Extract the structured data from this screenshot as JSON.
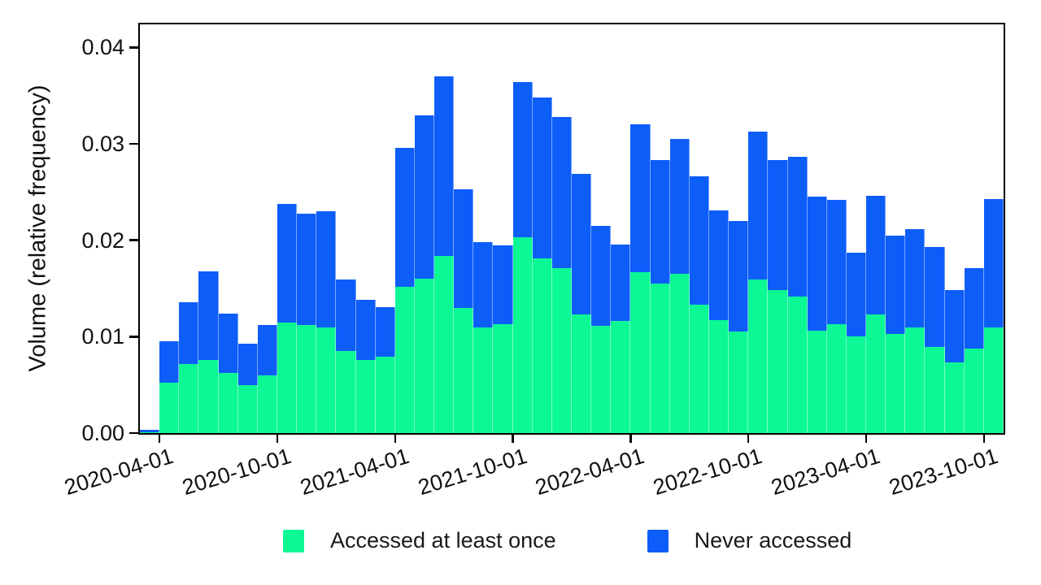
{
  "chart_data": {
    "type": "bar",
    "stacked": true,
    "title": "",
    "xlabel": "",
    "ylabel": "Volume (relative frequency)",
    "grid": false,
    "background": "#ffffff",
    "ylim": [
      0,
      0.0424
    ],
    "ytick_values": [
      0,
      0.01,
      0.02,
      0.03,
      0.04
    ],
    "ytick_labels": [
      "0.00",
      "0.01",
      "0.02",
      "0.03",
      "0.04"
    ],
    "categories": [
      "2020-03",
      "2020-04",
      "2020-05",
      "2020-06",
      "2020-07",
      "2020-08",
      "2020-09",
      "2020-10",
      "2020-11",
      "2020-12",
      "2021-01",
      "2021-02",
      "2021-03",
      "2021-04",
      "2021-05",
      "2021-06",
      "2021-07",
      "2021-08",
      "2021-09",
      "2021-10",
      "2021-11",
      "2021-12",
      "2022-01",
      "2022-02",
      "2022-03",
      "2022-04",
      "2022-05",
      "2022-06",
      "2022-07",
      "2022-08",
      "2022-09",
      "2022-10",
      "2022-11",
      "2022-12",
      "2023-01",
      "2023-02",
      "2023-03",
      "2023-04",
      "2023-05",
      "2023-06",
      "2023-07",
      "2023-08",
      "2023-09",
      "2023-10"
    ],
    "xtick_bar_indices": [
      1,
      7,
      13,
      19,
      25,
      31,
      37,
      43
    ],
    "xtick_labels": [
      "2020-04-01",
      "2020-10-01",
      "2021-04-01",
      "2021-10-01",
      "2022-04-01",
      "2022-10-01",
      "2023-04-01",
      "2023-10-01"
    ],
    "series": [
      {
        "name": "Accessed at least once",
        "color": "#0BF894",
        "values": [
          0.0001,
          0.0052,
          0.0072,
          0.0076,
          0.0062,
          0.005,
          0.006,
          0.0115,
          0.0112,
          0.011,
          0.0085,
          0.0076,
          0.0079,
          0.0152,
          0.016,
          0.0184,
          0.013,
          0.011,
          0.0113,
          0.0203,
          0.0181,
          0.0171,
          0.0123,
          0.0111,
          0.0116,
          0.0167,
          0.0155,
          0.0165,
          0.0133,
          0.0117,
          0.0105,
          0.0159,
          0.0148,
          0.0142,
          0.0106,
          0.0113,
          0.01,
          0.0123,
          0.0103,
          0.011,
          0.0089,
          0.0073,
          0.0088,
          0.011
        ]
      },
      {
        "name": "Never accessed",
        "color": "#0D5DF9",
        "values": [
          0.0002,
          0.0043,
          0.0064,
          0.0092,
          0.0062,
          0.0043,
          0.0052,
          0.0123,
          0.0116,
          0.012,
          0.0074,
          0.0062,
          0.0052,
          0.0144,
          0.017,
          0.0186,
          0.0123,
          0.0088,
          0.0082,
          0.0161,
          0.0167,
          0.0157,
          0.0146,
          0.0104,
          0.008,
          0.0153,
          0.0128,
          0.014,
          0.0133,
          0.0114,
          0.0115,
          0.0154,
          0.0135,
          0.0145,
          0.0139,
          0.0129,
          0.0087,
          0.0123,
          0.0102,
          0.0102,
          0.0104,
          0.0075,
          0.0083,
          0.0133
        ]
      }
    ],
    "legend": {
      "position": "bottom",
      "entries": [
        "Accessed at least once",
        "Never accessed"
      ]
    }
  }
}
